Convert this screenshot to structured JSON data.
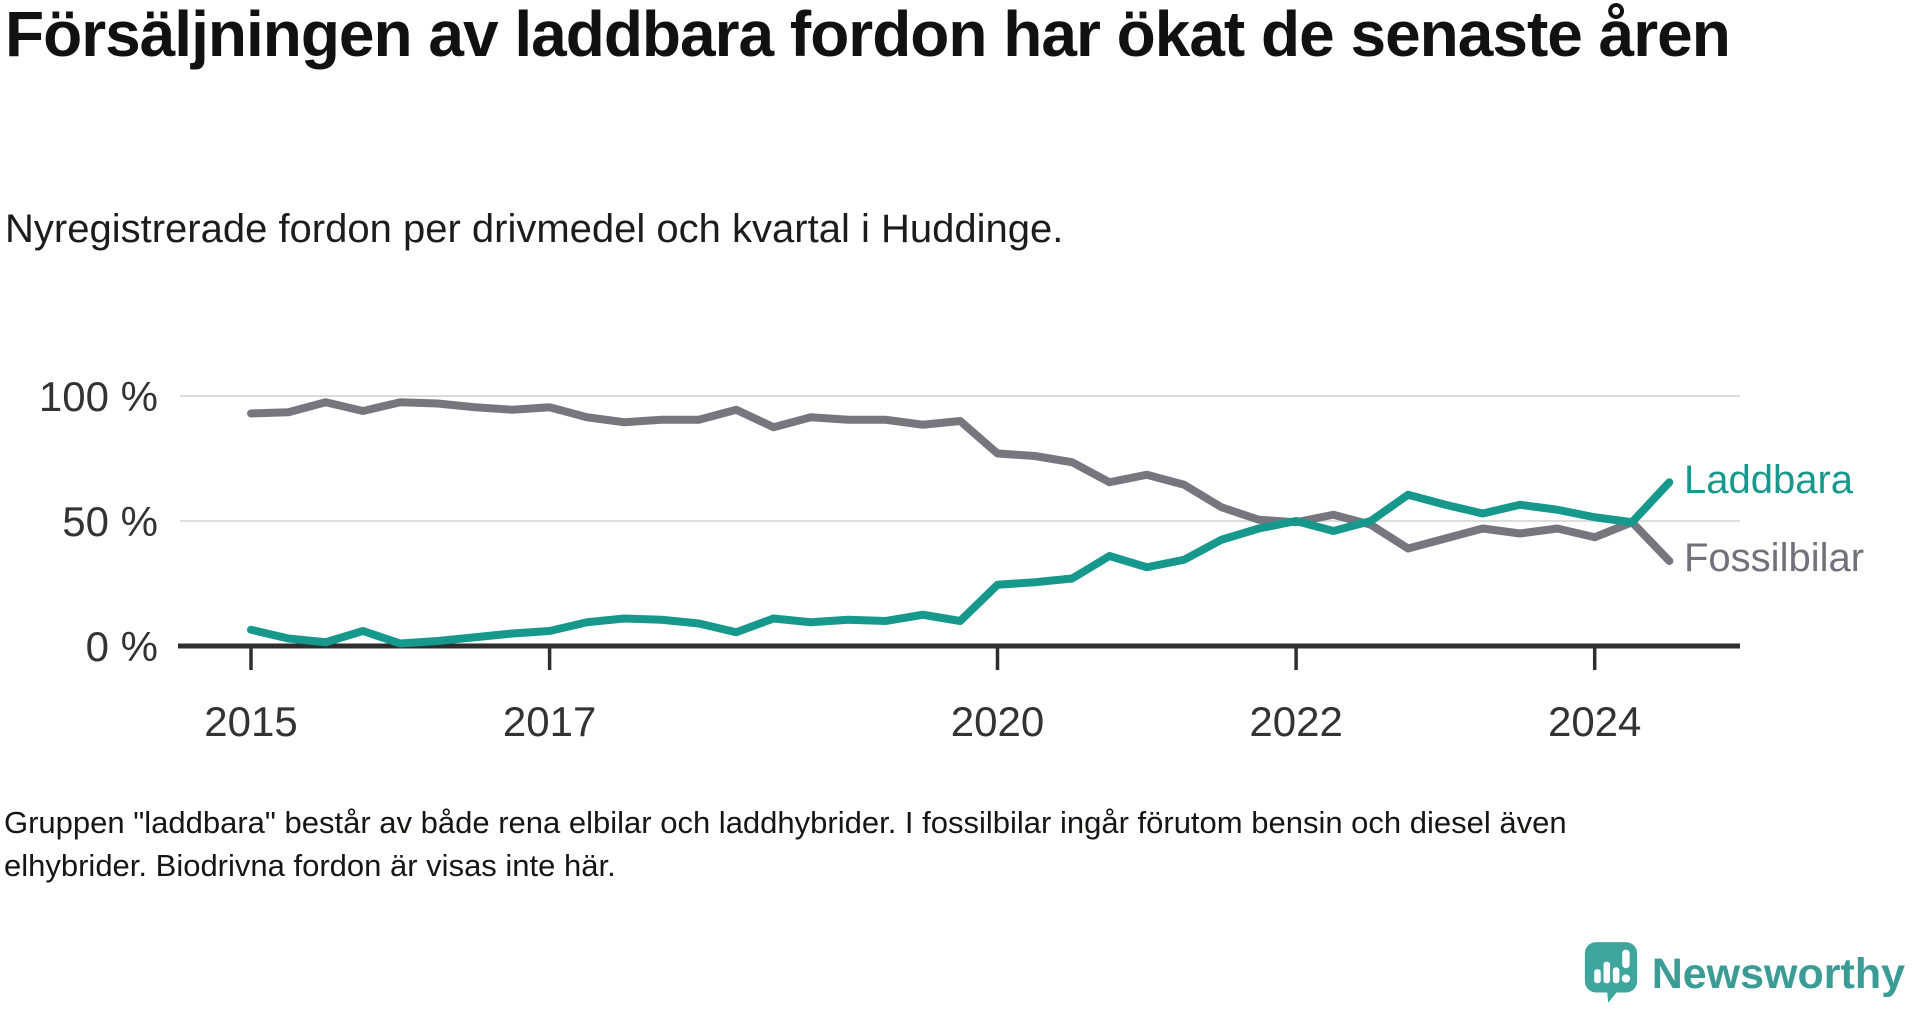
{
  "title": "Försäljningen av laddbara fordon har ökat de senaste åren",
  "subtitle": "Nyregistrerade fordon per drivmedel och kvartal i Huddinge.",
  "footer": {
    "lines": [
      "Gruppen \"laddbara\" består av både rena elbilar och laddhybrider. I fossilbilar ingår förutom bensin och diesel även",
      "elhybrider. Biodrivna fordon är visas inte här."
    ]
  },
  "branding": {
    "name": "Newsworthy",
    "icon": "speech-bubble-bar-chart-icon",
    "icon_color": "#3EA69C",
    "text_color": "#3A9C94"
  },
  "chart_data": {
    "type": "line",
    "x_unit": "quarter",
    "x_start": "2015-Q1",
    "x_end": "2024-Q3",
    "x_tick_years": [
      2015,
      2017,
      2020,
      2022,
      2024
    ],
    "y_ticks": [
      {
        "label": "0 %",
        "value": 0
      },
      {
        "label": "50 %",
        "value": 50
      },
      {
        "label": "100 %",
        "value": 100
      }
    ],
    "ylim": [
      0,
      100
    ],
    "grid": true,
    "legend_position": "right-of-line-ends",
    "series": [
      {
        "name": "Fossilbilar",
        "color": "#76767E",
        "label_color": "#71717A",
        "values": [
          93,
          93.5,
          97.5,
          94,
          97.5,
          97,
          95.5,
          94.5,
          95.5,
          91.5,
          89.5,
          90.5,
          90.5,
          94.5,
          87.5,
          91.5,
          90.5,
          90.5,
          88.5,
          90,
          77,
          76,
          73.5,
          65.5,
          68.5,
          64.5,
          55.5,
          50.5,
          49.5,
          52.5,
          48.5,
          39,
          43,
          47,
          45,
          47,
          43.5,
          49.5,
          34
        ]
      },
      {
        "name": "Laddbara",
        "color": "#16998C",
        "label_color": "#16998C",
        "values": [
          6.5,
          3,
          1.5,
          6,
          1,
          2,
          3.5,
          5,
          6,
          9.5,
          11,
          10.5,
          9,
          5.5,
          11,
          9.5,
          10.5,
          10,
          12.5,
          10,
          24.5,
          25.5,
          27,
          36,
          31.5,
          34.5,
          42.5,
          47,
          50,
          46,
          50,
          60.5,
          56.5,
          53,
          56.5,
          54.5,
          51.5,
          49.5,
          65.5
        ]
      }
    ]
  }
}
